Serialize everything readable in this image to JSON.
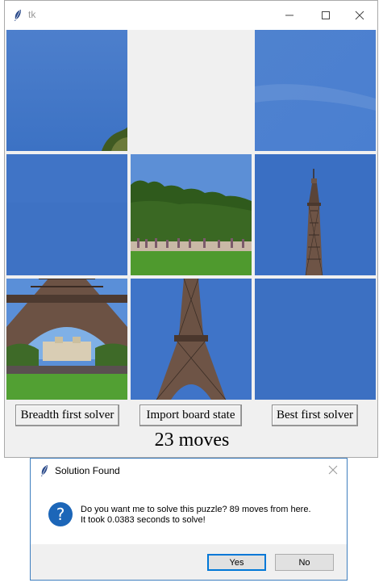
{
  "window": {
    "title": "tk",
    "icon": "feather-icon",
    "controls": [
      "minimize-icon",
      "maximize-icon",
      "close-icon"
    ]
  },
  "board": {
    "tiles": [
      {
        "content": "sky-with-treetop-corner"
      },
      {
        "content": "empty"
      },
      {
        "content": "sky"
      },
      {
        "content": "sky"
      },
      {
        "content": "trees-and-crowd"
      },
      {
        "content": "tower-spire"
      },
      {
        "content": "tower-base-with-arch"
      },
      {
        "content": "tower-midsection"
      },
      {
        "content": "sky"
      }
    ]
  },
  "buttons": {
    "bfs": "Breadth first solver",
    "import": "Import board state",
    "best": "Best first solver"
  },
  "status": {
    "moves": "23 moves"
  },
  "dialog": {
    "title": "Solution Found",
    "icon": "question-icon",
    "line1": "Do you want me to solve this puzzle? 89 moves from here.",
    "line2": "It took 0.0383 seconds to solve!",
    "yes": "Yes",
    "no": "No"
  },
  "colors": {
    "sky": "#3e74c6",
    "button_face": "#f0f0f0",
    "dialog_border": "#3f7fbf",
    "default_button_border": "#0078d7",
    "question_icon": "#1c66b8"
  }
}
